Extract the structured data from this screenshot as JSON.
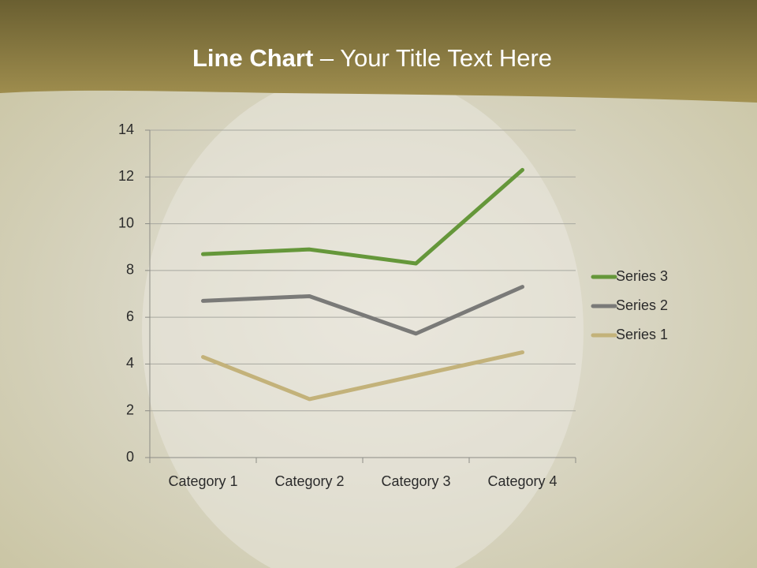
{
  "chart_data": {
    "type": "line",
    "stacked": true,
    "title_bold": "Line Chart",
    "title_rest": "– Your Title Text Here",
    "categories": [
      "Category 1",
      "Category 2",
      "Category 3",
      "Category 4"
    ],
    "series": [
      {
        "name": "Series 1",
        "color": "#c3b27a",
        "values": [
          4.3,
          2.5,
          3.5,
          4.5
        ]
      },
      {
        "name": "Series 2",
        "color": "#7a7a78",
        "values": [
          2.4,
          4.4,
          1.8,
          2.8
        ]
      },
      {
        "name": "Series 3",
        "color": "#65973a",
        "values": [
          2,
          2,
          3,
          5
        ]
      }
    ],
    "ylim": [
      0,
      14
    ],
    "yticks": [
      0,
      2,
      4,
      6,
      8,
      10,
      12,
      14
    ],
    "grid": true,
    "legend": "right"
  }
}
